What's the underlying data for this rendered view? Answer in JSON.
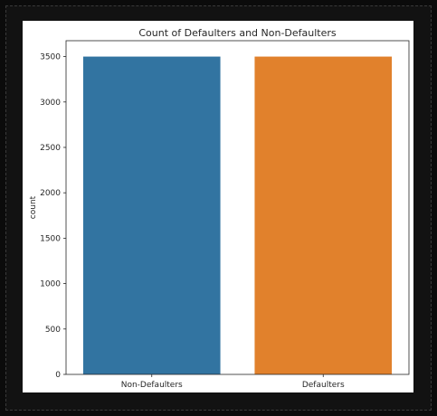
{
  "chart_data": {
    "type": "bar",
    "title": "Count of Defaulters and Non-Defaulters",
    "xlabel": "",
    "ylabel": "count",
    "categories": [
      "Non-Defaulters",
      "Defaulters"
    ],
    "values": [
      3500,
      3500
    ],
    "ylim": [
      0,
      3675
    ],
    "yticks": [
      0,
      500,
      1000,
      1500,
      2000,
      2500,
      3000,
      3500
    ],
    "colors": [
      "#3274a1",
      "#e1812c"
    ],
    "grid": false,
    "legend": "none"
  }
}
